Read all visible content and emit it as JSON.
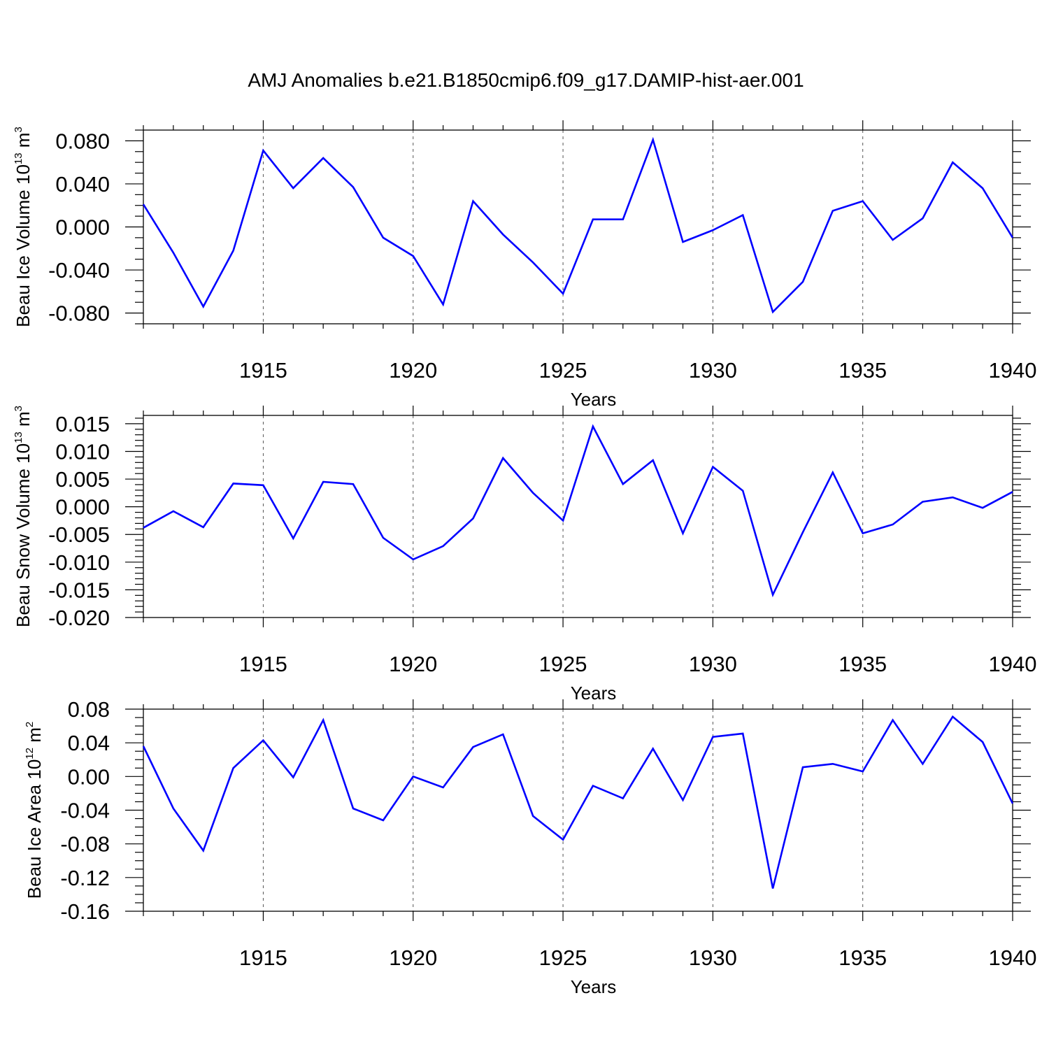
{
  "title": "AMJ Anomalies b.e21.B1850cmip6.f09_g17.DAMIP-hist-aer.001",
  "colors": {
    "line": "#0000ff",
    "axis": "#000000",
    "grid": "#555555"
  },
  "chart_data": [
    {
      "type": "line",
      "ylabel": {
        "main": "Beau Ice Volume 10",
        "exp": "13",
        "unit": " m",
        "unit_exp": "3"
      },
      "xlabel": "Years",
      "xlim": [
        1911,
        1940
      ],
      "ylim": [
        -0.09,
        0.09
      ],
      "grid": "dashed vertical at major x ticks",
      "x_ticks": [
        1915,
        1920,
        1925,
        1930,
        1935,
        1940
      ],
      "x_tick_labels": [
        "1915",
        "1920",
        "1925",
        "1930",
        "1935",
        "1940"
      ],
      "y_ticks": [
        -0.08,
        -0.04,
        0.0,
        0.04,
        0.08
      ],
      "y_tick_labels": [
        "-0.080",
        "-0.040",
        "0.000",
        "0.040",
        "0.080"
      ],
      "y_minor_step": 0.01,
      "x": [
        1911,
        1912,
        1913,
        1914,
        1915,
        1916,
        1917,
        1918,
        1919,
        1920,
        1921,
        1922,
        1923,
        1924,
        1925,
        1926,
        1927,
        1928,
        1929,
        1930,
        1931,
        1932,
        1933,
        1934,
        1935,
        1936,
        1937,
        1938,
        1939,
        1940
      ],
      "series": [
        {
          "name": "Beau Ice Volume",
          "values": [
            0.021,
            -0.024,
            -0.074,
            -0.022,
            0.071,
            0.036,
            0.064,
            0.037,
            -0.01,
            -0.027,
            -0.072,
            0.024,
            -0.007,
            -0.033,
            -0.062,
            0.007,
            0.007,
            0.081,
            -0.014,
            -0.003,
            0.011,
            -0.079,
            -0.051,
            0.015,
            0.024,
            -0.012,
            0.008,
            0.06,
            0.036,
            -0.01
          ]
        }
      ]
    },
    {
      "type": "line",
      "ylabel": {
        "main": "Beau Snow Volume 10",
        "exp": "13",
        "unit": " m",
        "unit_exp": "3"
      },
      "xlabel": "Years",
      "xlim": [
        1911,
        1940
      ],
      "ylim": [
        -0.02,
        0.0165
      ],
      "grid": "dashed vertical at major x ticks",
      "x_ticks": [
        1915,
        1920,
        1925,
        1930,
        1935,
        1940
      ],
      "x_tick_labels": [
        "1915",
        "1920",
        "1925",
        "1930",
        "1935",
        "1940"
      ],
      "y_ticks": [
        -0.02,
        -0.015,
        -0.01,
        -0.005,
        0.0,
        0.005,
        0.01,
        0.015
      ],
      "y_tick_labels": [
        "-0.020",
        "-0.015",
        "-0.010",
        "-0.005",
        "0.000",
        "0.005",
        "0.010",
        "0.015"
      ],
      "y_minor_step": 0.001,
      "x": [
        1911,
        1912,
        1913,
        1914,
        1915,
        1916,
        1917,
        1918,
        1919,
        1920,
        1921,
        1922,
        1923,
        1924,
        1925,
        1926,
        1927,
        1928,
        1929,
        1930,
        1931,
        1932,
        1933,
        1934,
        1935,
        1936,
        1937,
        1938,
        1939,
        1940
      ],
      "series": [
        {
          "name": "Beau Snow Volume",
          "values": [
            -0.0038,
            -0.0008,
            -0.0037,
            0.0042,
            0.0039,
            -0.0057,
            0.0045,
            0.0041,
            -0.0056,
            -0.0095,
            -0.0071,
            -0.0021,
            0.0088,
            0.0025,
            -0.0025,
            0.0145,
            0.0041,
            0.0084,
            -0.0048,
            0.0072,
            0.0029,
            -0.0159,
            -0.0046,
            0.0062,
            -0.0048,
            -0.0032,
            0.0009,
            0.0017,
            -0.0002,
            0.0027
          ]
        }
      ]
    },
    {
      "type": "line",
      "ylabel": {
        "main": "Beau Ice Area 10",
        "exp": "12",
        "unit": " m",
        "unit_exp": "2"
      },
      "xlabel": "Years",
      "xlim": [
        1911,
        1940
      ],
      "ylim": [
        -0.16,
        0.08
      ],
      "grid": "dashed vertical at major x ticks",
      "x_ticks": [
        1915,
        1920,
        1925,
        1930,
        1935,
        1940
      ],
      "x_tick_labels": [
        "1915",
        "1920",
        "1925",
        "1930",
        "1935",
        "1940"
      ],
      "y_ticks": [
        -0.16,
        -0.12,
        -0.08,
        -0.04,
        0.0,
        0.04,
        0.08
      ],
      "y_tick_labels": [
        "-0.16",
        "-0.12",
        "-0.08",
        "-0.04",
        "0.00",
        "0.04",
        "0.08"
      ],
      "y_minor_step": 0.01,
      "x": [
        1911,
        1912,
        1913,
        1914,
        1915,
        1916,
        1917,
        1918,
        1919,
        1920,
        1921,
        1922,
        1923,
        1924,
        1925,
        1926,
        1927,
        1928,
        1929,
        1930,
        1931,
        1932,
        1933,
        1934,
        1935,
        1936,
        1937,
        1938,
        1939,
        1940
      ],
      "series": [
        {
          "name": "Beau Ice Area",
          "values": [
            0.036,
            -0.038,
            -0.088,
            0.01,
            0.043,
            -0.001,
            0.067,
            -0.038,
            -0.052,
            0.0,
            -0.013,
            0.035,
            0.05,
            -0.047,
            -0.075,
            -0.011,
            -0.026,
            0.033,
            -0.028,
            0.047,
            0.051,
            -0.133,
            0.011,
            0.015,
            0.006,
            0.067,
            0.015,
            0.071,
            0.041,
            -0.032
          ]
        }
      ]
    }
  ]
}
